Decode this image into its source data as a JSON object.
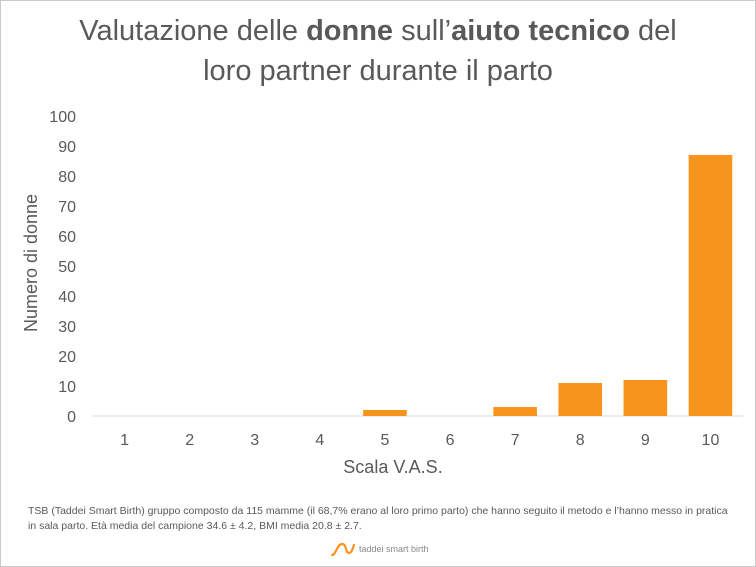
{
  "title": {
    "line1": {
      "p1": "Valutazione delle ",
      "b1": "donne",
      "p2": " sull’",
      "b2": "aiuto tecnico",
      "p3": " del"
    },
    "line2": "loro partner durante il parto"
  },
  "chart_data": {
    "type": "bar",
    "categories": [
      "1",
      "2",
      "3",
      "4",
      "5",
      "6",
      "7",
      "8",
      "9",
      "10"
    ],
    "values": [
      0,
      0,
      0,
      0,
      2,
      0,
      3,
      11,
      12,
      87
    ],
    "xlabel": "Scala V.A.S.",
    "ylabel": "Numero di donne",
    "ylim": [
      0,
      100
    ],
    "yticks": [
      0,
      10,
      20,
      30,
      40,
      50,
      60,
      70,
      80,
      90,
      100
    ],
    "bar_color": "#F7941D",
    "grid": false
  },
  "footnote": "TSB (Taddei Smart Birth) gruppo composto da 115 mamme (il 68,7% erano al loro primo parto) che hanno seguito il metodo e l’hanno messo in pratica in sala parto. Età media del campione 34.6 ± 4.2, BMI media 20.8 ± 2.7.",
  "logo": {
    "text": "taddei smart birth",
    "icon": "taddei-logo-icon",
    "color": "#F7941D"
  }
}
